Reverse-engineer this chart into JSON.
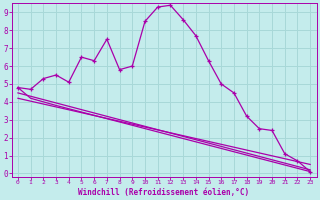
{
  "title": "",
  "xlabel": "Windchill (Refroidissement éolien,°C)",
  "ylabel": "",
  "bg_color": "#c4ecec",
  "grid_color": "#a8d8d8",
  "line_color": "#aa00aa",
  "xlim": [
    -0.5,
    23.5
  ],
  "ylim": [
    -0.2,
    9.5
  ],
  "xticks": [
    0,
    1,
    2,
    3,
    4,
    5,
    6,
    7,
    8,
    9,
    10,
    11,
    12,
    13,
    14,
    15,
    16,
    17,
    18,
    19,
    20,
    21,
    22,
    23
  ],
  "yticks": [
    0,
    1,
    2,
    3,
    4,
    5,
    6,
    7,
    8,
    9
  ],
  "line1_x": [
    0,
    1,
    2,
    3,
    4,
    5,
    6,
    7,
    8,
    9,
    10,
    11,
    12,
    13,
    14,
    15,
    16,
    17,
    18,
    19,
    20,
    21,
    22,
    23
  ],
  "line1_y": [
    4.8,
    4.7,
    5.3,
    5.5,
    5.1,
    6.5,
    6.3,
    7.5,
    5.8,
    6.0,
    8.5,
    9.3,
    9.4,
    8.6,
    7.7,
    6.3,
    5.0,
    4.5,
    3.2,
    2.5,
    2.4,
    1.1,
    0.7,
    0.1
  ],
  "line2_x": [
    0,
    1,
    2,
    3,
    23
  ],
  "line2_y": [
    4.8,
    4.2,
    4.0,
    3.8,
    0.1
  ],
  "line3_x": [
    0,
    23
  ],
  "line3_y": [
    4.5,
    0.2
  ],
  "line4_x": [
    0,
    23
  ],
  "line4_y": [
    4.2,
    0.5
  ]
}
